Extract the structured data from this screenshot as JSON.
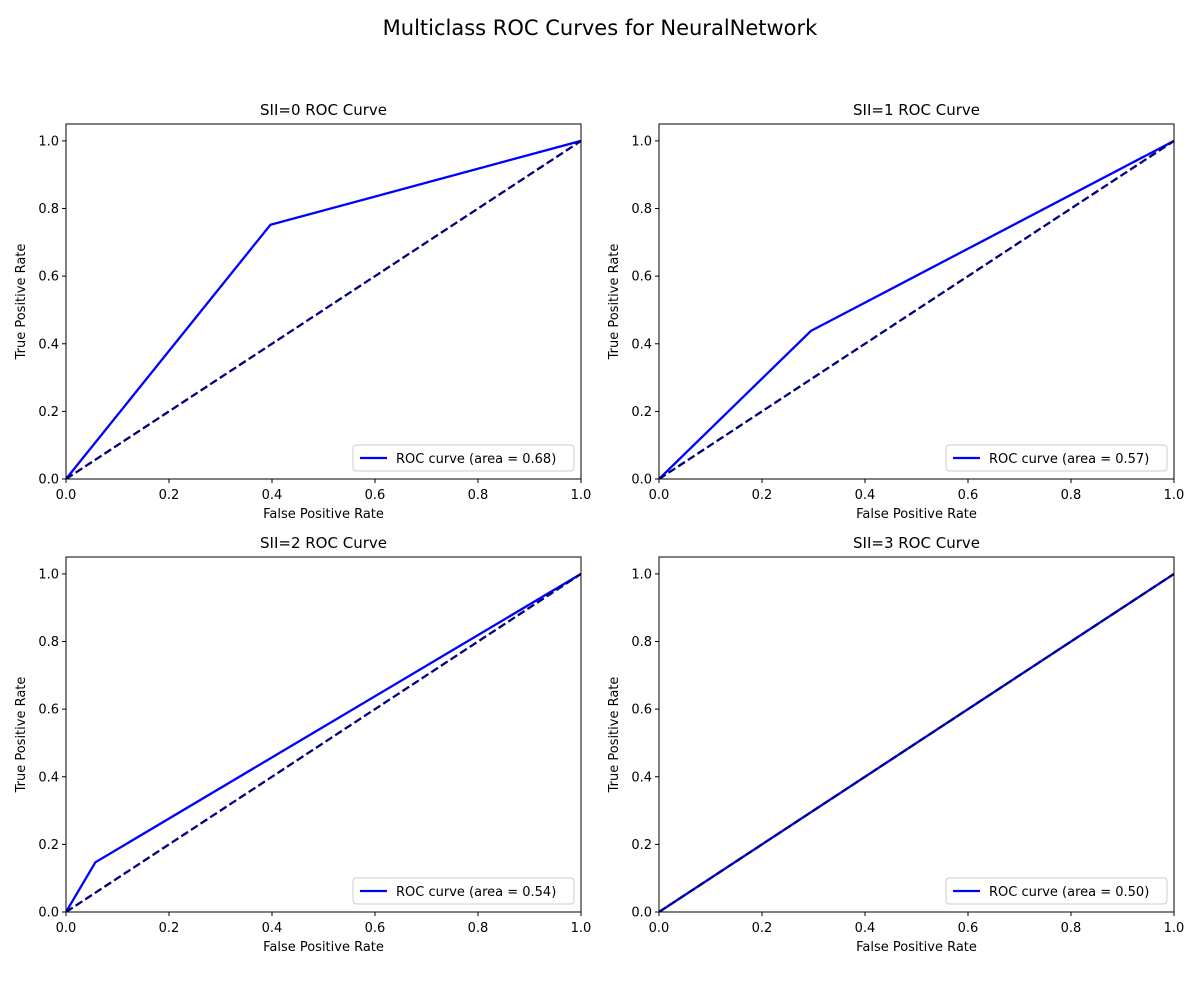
{
  "figure": {
    "title": "Multiclass ROC Curves for NeuralNetwork"
  },
  "colors": {
    "roc_curve": "#0000ff",
    "chance_line": "#000080"
  },
  "chart_data": [
    {
      "type": "line",
      "title": "SII=0 ROC Curve",
      "xlabel": "False Positive Rate",
      "ylabel": "True Positive Rate",
      "xlim": [
        0.0,
        1.0
      ],
      "ylim": [
        0.0,
        1.05
      ],
      "xticks": [
        "0.0",
        "0.2",
        "0.4",
        "0.6",
        "0.8",
        "1.0"
      ],
      "yticks": [
        "0.0",
        "0.2",
        "0.4",
        "0.6",
        "0.8",
        "1.0"
      ],
      "legend_position": "lower-right",
      "legend_label": "ROC curve (area = 0.68)",
      "series": [
        {
          "name": "ROC curve (area = 0.68)",
          "style": "solid",
          "x": [
            0.0,
            0.397,
            1.0
          ],
          "y": [
            0.0,
            0.752,
            1.0
          ]
        },
        {
          "style": "dashed",
          "x": [
            0.0,
            1.0
          ],
          "y": [
            0.0,
            1.0
          ]
        }
      ]
    },
    {
      "type": "line",
      "title": "SII=1 ROC Curve",
      "xlabel": "False Positive Rate",
      "ylabel": "True Positive Rate",
      "xlim": [
        0.0,
        1.0
      ],
      "ylim": [
        0.0,
        1.05
      ],
      "xticks": [
        "0.0",
        "0.2",
        "0.4",
        "0.6",
        "0.8",
        "1.0"
      ],
      "yticks": [
        "0.0",
        "0.2",
        "0.4",
        "0.6",
        "0.8",
        "1.0"
      ],
      "legend_position": "lower-right",
      "legend_label": "ROC curve (area = 0.57)",
      "series": [
        {
          "name": "ROC curve (area = 0.57)",
          "style": "solid",
          "x": [
            0.0,
            0.295,
            1.0
          ],
          "y": [
            0.0,
            0.438,
            1.0
          ]
        },
        {
          "style": "dashed",
          "x": [
            0.0,
            1.0
          ],
          "y": [
            0.0,
            1.0
          ]
        }
      ]
    },
    {
      "type": "line",
      "title": "SII=2 ROC Curve",
      "xlabel": "False Positive Rate",
      "ylabel": "True Positive Rate",
      "xlim": [
        0.0,
        1.0
      ],
      "ylim": [
        0.0,
        1.05
      ],
      "xticks": [
        "0.0",
        "0.2",
        "0.4",
        "0.6",
        "0.8",
        "1.0"
      ],
      "yticks": [
        "0.0",
        "0.2",
        "0.4",
        "0.6",
        "0.8",
        "1.0"
      ],
      "legend_position": "lower-right",
      "legend_label": "ROC curve (area = 0.54)",
      "series": [
        {
          "name": "ROC curve (area = 0.54)",
          "style": "solid",
          "x": [
            0.0,
            0.057,
            1.0
          ],
          "y": [
            0.0,
            0.147,
            1.0
          ]
        },
        {
          "style": "dashed",
          "x": [
            0.0,
            1.0
          ],
          "y": [
            0.0,
            1.0
          ]
        }
      ]
    },
    {
      "type": "line",
      "title": "SII=3 ROC Curve",
      "xlabel": "False Positive Rate",
      "ylabel": "True Positive Rate",
      "xlim": [
        0.0,
        1.0
      ],
      "ylim": [
        0.0,
        1.05
      ],
      "xticks": [
        "0.0",
        "0.2",
        "0.4",
        "0.6",
        "0.8",
        "1.0"
      ],
      "yticks": [
        "0.0",
        "0.2",
        "0.4",
        "0.6",
        "0.8",
        "1.0"
      ],
      "legend_position": "lower-right",
      "legend_label": "ROC curve (area = 0.50)",
      "series": [
        {
          "name": "ROC curve (area = 0.50)",
          "style": "solid",
          "x": [
            0.0,
            1.0
          ],
          "y": [
            0.0,
            1.0
          ]
        },
        {
          "style": "dashed",
          "x": [
            0.0,
            1.0
          ],
          "y": [
            0.0,
            1.0
          ]
        }
      ]
    }
  ]
}
